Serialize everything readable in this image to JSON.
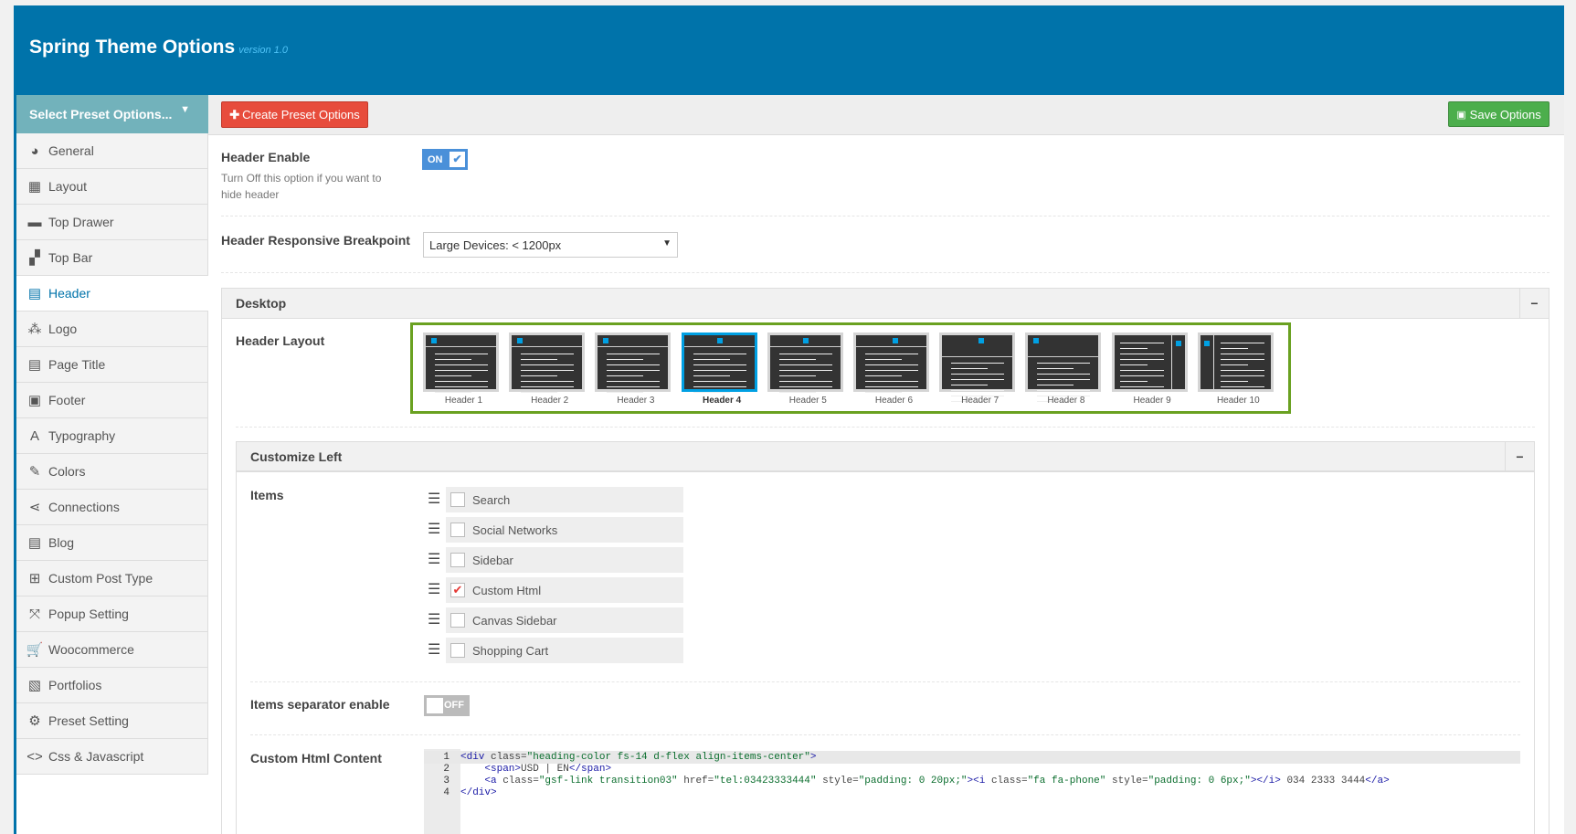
{
  "app": {
    "title": "Spring Theme Options",
    "version": "version 1.0"
  },
  "sidebar": {
    "preset_select": "Select Preset Options...",
    "items": [
      {
        "label": "General",
        "icon": "globe-icon",
        "glyph": "◕"
      },
      {
        "label": "Layout",
        "icon": "table-icon",
        "glyph": "▦"
      },
      {
        "label": "Top Drawer",
        "icon": "drawer-icon",
        "glyph": "▬"
      },
      {
        "label": "Top Bar",
        "icon": "grid-icon",
        "glyph": "▞"
      },
      {
        "label": "Header",
        "icon": "keyboard-icon",
        "glyph": "▤",
        "active": true
      },
      {
        "label": "Logo",
        "icon": "circles-icon",
        "glyph": "⁂"
      },
      {
        "label": "Page Title",
        "icon": "document-icon",
        "glyph": "▤"
      },
      {
        "label": "Footer",
        "icon": "footer-icon",
        "glyph": "▣"
      },
      {
        "label": "Typography",
        "icon": "font-icon",
        "glyph": "A"
      },
      {
        "label": "Colors",
        "icon": "brush-icon",
        "glyph": "✎"
      },
      {
        "label": "Connections",
        "icon": "share-icon",
        "glyph": "⋖"
      },
      {
        "label": "Blog",
        "icon": "file-icon",
        "glyph": "▤"
      },
      {
        "label": "Custom Post Type",
        "icon": "grid-squares-icon",
        "glyph": "⊞"
      },
      {
        "label": "Popup Setting",
        "icon": "expand-icon",
        "glyph": "⤧"
      },
      {
        "label": "Woocommerce",
        "icon": "cart-icon",
        "glyph": "🛒"
      },
      {
        "label": "Portfolios",
        "icon": "images-icon",
        "glyph": "▧"
      },
      {
        "label": "Preset Setting",
        "icon": "gear-icon",
        "glyph": "⚙"
      },
      {
        "label": "Css & Javascript",
        "icon": "code-icon",
        "glyph": "<>"
      }
    ]
  },
  "toolbar": {
    "create_label": "Create Preset Options",
    "save_label": "Save Options"
  },
  "header_enable": {
    "label": "Header Enable",
    "desc": "Turn Off this option if you want to hide header",
    "state": "ON"
  },
  "breakpoint": {
    "label": "Header Responsive Breakpoint",
    "value": "Large Devices: < 1200px"
  },
  "desktop": {
    "title": "Desktop",
    "collapse": "−",
    "layout_label": "Header Layout",
    "selected": "Header 4",
    "layouts": [
      "Header 1",
      "Header 2",
      "Header 3",
      "Header 4",
      "Header 5",
      "Header 6",
      "Header 7",
      "Header 8",
      "Header 9",
      "Header 10"
    ]
  },
  "customize_left": {
    "title": "Customize Left",
    "collapse": "−",
    "items_label": "Items",
    "items": [
      {
        "label": "Search",
        "checked": false
      },
      {
        "label": "Social Networks",
        "checked": false
      },
      {
        "label": "Sidebar",
        "checked": false
      },
      {
        "label": "Custom Html",
        "checked": true
      },
      {
        "label": "Canvas Sidebar",
        "checked": false
      },
      {
        "label": "Shopping Cart",
        "checked": false
      }
    ],
    "separator": {
      "label": "Items separator enable",
      "state": "OFF"
    },
    "custom_html": {
      "label": "Custom Html Content",
      "lines": [
        "<div class=\"heading-color fs-14 d-flex align-items-center\">",
        "    <span>USD | EN</span>",
        "    <a class=\"gsf-link transition03\" href=\"tel:03423333444\" style=\"padding: 0 20px;\"><i class=\"fa fa-phone\" style=\"padding: 0 6px;\"></i> 034 2333 3444</a>",
        "</div>"
      ]
    }
  },
  "colors": {
    "brand": "#0073aa",
    "accent": "#00a0e3",
    "danger": "#e74c3c",
    "success": "#4cae4c",
    "layout_border": "#6aa121"
  }
}
